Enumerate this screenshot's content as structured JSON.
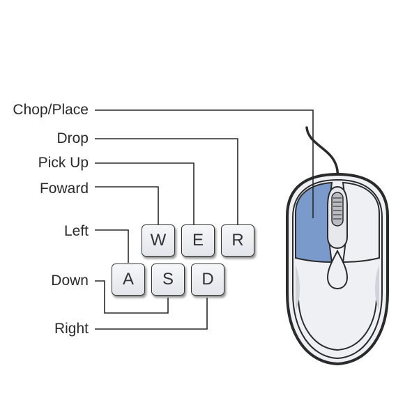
{
  "labels": {
    "chop_place": "Chop/Place",
    "drop": "Drop",
    "pick_up": "Pick Up",
    "forward": "Foward",
    "left": "Left",
    "down": "Down",
    "right": "Right"
  },
  "keys": {
    "w": "W",
    "e": "E",
    "r": "R",
    "a": "A",
    "s": "S",
    "d": "D"
  },
  "colors": {
    "mouse_button_highlight": "#7b9acc",
    "mouse_body": "#eef0f4",
    "outline": "#333333"
  }
}
